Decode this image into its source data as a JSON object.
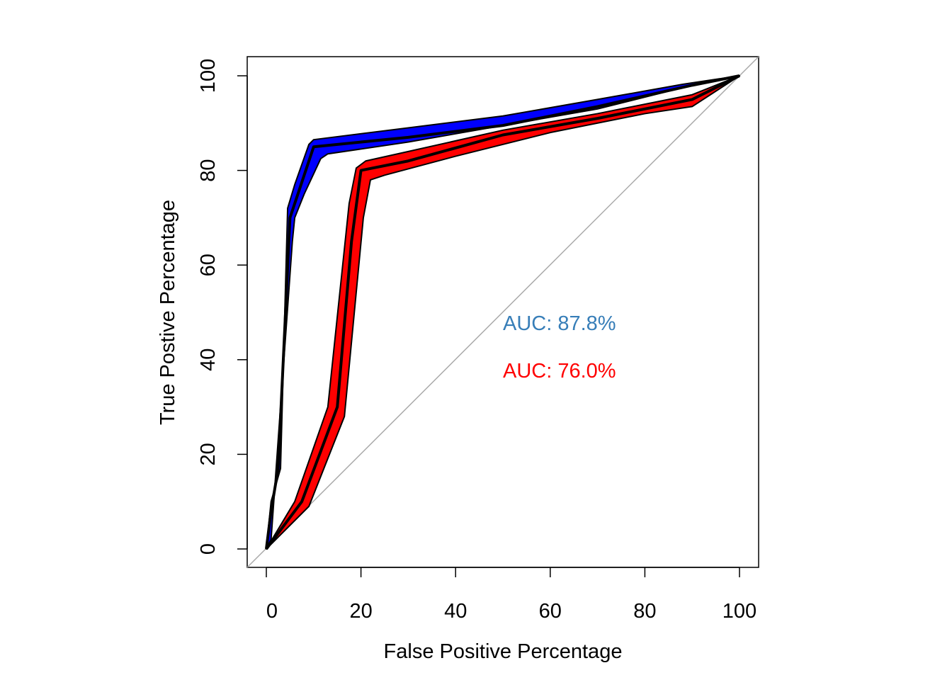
{
  "chart_data": {
    "type": "line",
    "title": "",
    "xlabel": "False Positive Percentage",
    "ylabel": "True Postive Percentage",
    "xlim": [
      0,
      100
    ],
    "ylim": [
      0,
      100
    ],
    "xticks": [
      "0",
      "20",
      "40",
      "60",
      "80",
      "100"
    ],
    "yticks": [
      "0",
      "20",
      "40",
      "60",
      "80",
      "100"
    ],
    "xtick_values": [
      0,
      20,
      40,
      60,
      80,
      100
    ],
    "ytick_values": [
      0,
      20,
      40,
      60,
      80,
      100
    ],
    "grid": false,
    "reference_line": {
      "from": [
        0,
        0
      ],
      "to": [
        100,
        100
      ],
      "color": "#aaaaaa"
    },
    "series": [
      {
        "name": "blue",
        "band_color": "#0000ff",
        "line_color": "#000000",
        "auc_label": "AUC: 87.8%",
        "auc_color": "#377eb8",
        "line": [
          [
            0,
            0
          ],
          [
            1,
            8
          ],
          [
            2.5,
            17
          ],
          [
            5,
            70
          ],
          [
            7,
            76
          ],
          [
            10,
            85
          ],
          [
            30,
            87
          ],
          [
            50,
            89.5
          ],
          [
            70,
            93.5
          ],
          [
            90,
            98
          ],
          [
            100,
            100
          ]
        ],
        "ci_upper": [
          [
            0,
            0
          ],
          [
            1,
            10
          ],
          [
            3,
            17
          ],
          [
            4.5,
            72
          ],
          [
            6,
            77
          ],
          [
            9,
            85.5
          ],
          [
            10,
            86.5
          ],
          [
            30,
            89
          ],
          [
            50,
            91.5
          ],
          [
            70,
            95
          ],
          [
            88,
            98.2
          ],
          [
            100,
            100
          ]
        ],
        "ci_lower": [
          [
            0,
            0
          ],
          [
            1,
            2
          ],
          [
            5.5,
            65
          ],
          [
            6,
            70
          ],
          [
            8,
            75
          ],
          [
            11.5,
            82.5
          ],
          [
            13,
            83.5
          ],
          [
            30,
            86
          ],
          [
            50,
            89.5
          ],
          [
            70,
            93
          ],
          [
            88,
            97.5
          ],
          [
            100,
            100
          ]
        ]
      },
      {
        "name": "red",
        "band_color": "#ff0000",
        "line_color": "#000000",
        "auc_label": "AUC: 76.0%",
        "auc_color": "#ff0000",
        "line": [
          [
            0,
            0
          ],
          [
            7.5,
            10
          ],
          [
            15,
            30
          ],
          [
            18,
            65
          ],
          [
            20,
            80
          ],
          [
            30,
            82
          ],
          [
            50,
            87.5
          ],
          [
            70,
            91
          ],
          [
            90,
            95
          ],
          [
            100,
            100
          ]
        ],
        "ci_upper": [
          [
            0,
            0
          ],
          [
            6,
            10
          ],
          [
            13,
            30
          ],
          [
            17.5,
            73
          ],
          [
            19,
            80.5
          ],
          [
            21,
            82
          ],
          [
            30,
            84
          ],
          [
            50,
            88.5
          ],
          [
            70,
            92
          ],
          [
            90,
            96
          ],
          [
            100,
            100
          ]
        ],
        "ci_lower": [
          [
            0,
            0
          ],
          [
            9,
            9
          ],
          [
            16.5,
            28
          ],
          [
            20.5,
            70
          ],
          [
            22,
            78
          ],
          [
            25,
            79
          ],
          [
            40,
            83
          ],
          [
            60,
            88
          ],
          [
            80,
            92
          ],
          [
            90,
            93.5
          ],
          [
            100,
            100
          ]
        ]
      }
    ]
  }
}
